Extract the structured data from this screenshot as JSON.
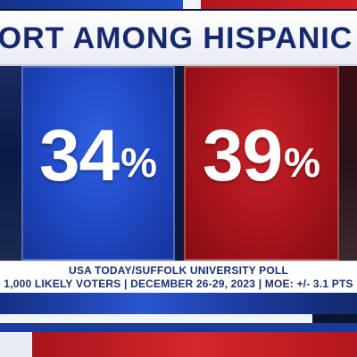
{
  "headline": {
    "text": "PORT AMONG HISPANIC VO"
  },
  "results": [
    {
      "value": "34",
      "symbol": "%",
      "color": "#1f47c2"
    },
    {
      "value": "39",
      "symbol": "%",
      "color": "#a8141b"
    }
  ],
  "source": {
    "line1": "USA TODAY/SUFFOLK UNIVERSITY POLL",
    "line2": "1,000 LIKELY VOTERS | DECEMBER 26-29, 2023 | MOE: +/- 3.1 PTS"
  },
  "colors": {
    "headline_text": "#16296e",
    "blue_panel": "#1f47c2",
    "red_panel": "#a8141b",
    "source_text": "#1b2e72"
  }
}
